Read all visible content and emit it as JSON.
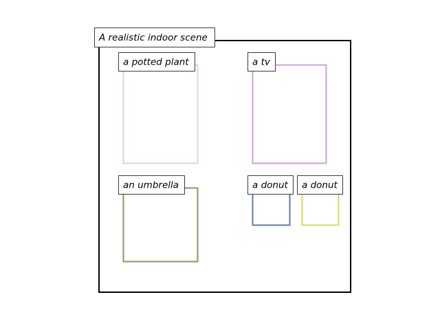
{
  "scene": {
    "caption": "A realistic indoor scene",
    "frame_color": "#000000"
  },
  "objects": [
    {
      "label": "a potted plant",
      "color": "#e2d3f2"
    },
    {
      "label": "a tv",
      "color": "#d6a7dc"
    },
    {
      "label": "an umbrella",
      "color": "#9a9a76"
    },
    {
      "label": "a donut",
      "color": "#7182b2"
    },
    {
      "label": "a donut",
      "color": "#d9dd6a"
    }
  ]
}
